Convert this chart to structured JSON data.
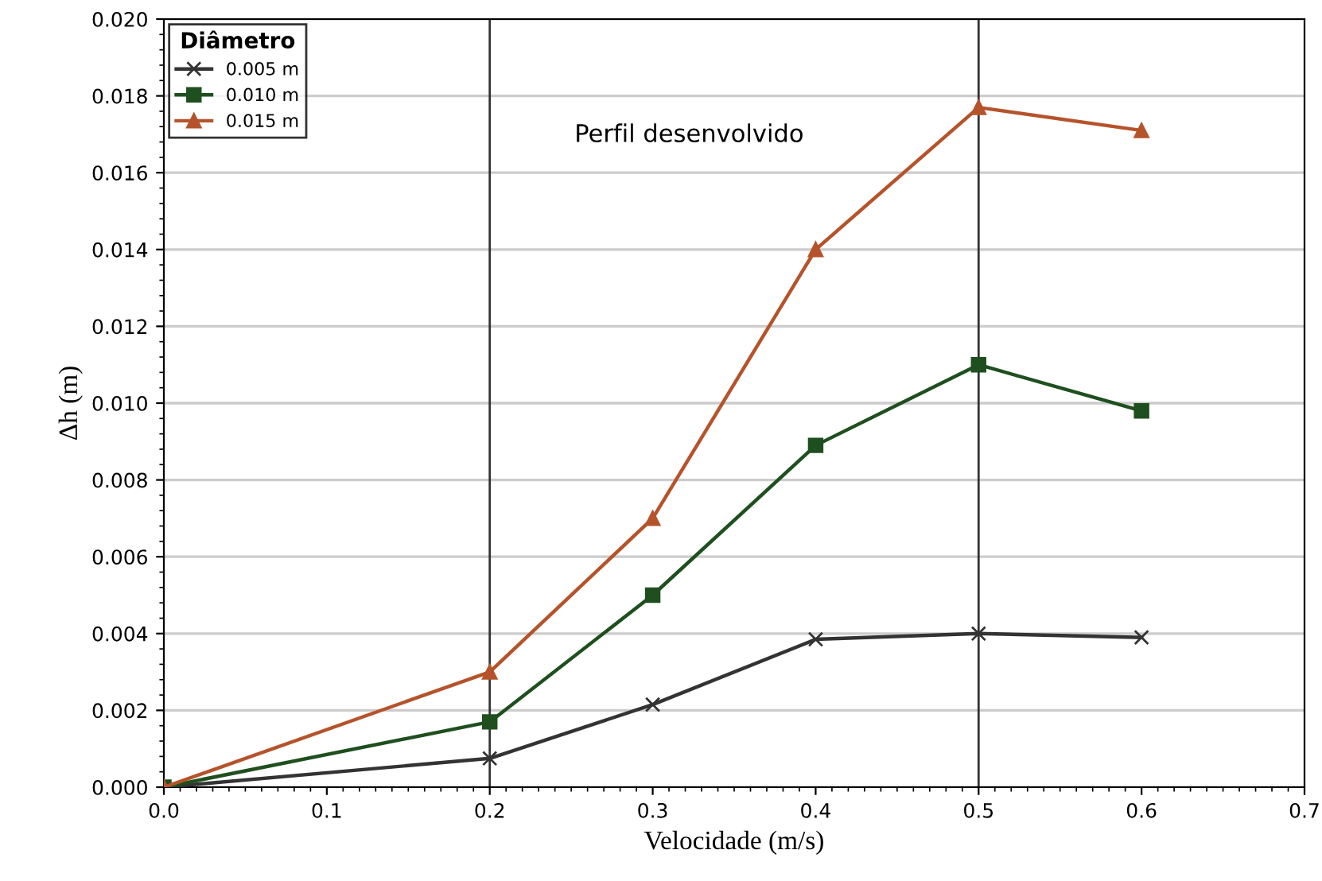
{
  "chart_data": {
    "type": "line",
    "xlabel": "Velocidade (m/s)",
    "ylabel": "Δh (m)",
    "legend_title": "Diâmetro",
    "x": [
      0.0,
      0.2,
      0.3,
      0.4,
      0.5,
      0.6
    ],
    "series": [
      {
        "name": "0.005 m",
        "color": "#333333",
        "marker": "cross",
        "values": [
          0.0,
          0.00075,
          0.00215,
          0.00385,
          0.004,
          0.0039
        ]
      },
      {
        "name": "0.010 m",
        "color": "#1f4f1f",
        "marker": "square",
        "values": [
          0.0,
          0.0017,
          0.005,
          0.0089,
          0.011,
          0.0098
        ]
      },
      {
        "name": "0.015 m",
        "color": "#b5532b",
        "marker": "triangle",
        "values": [
          0.0,
          0.003,
          0.007,
          0.014,
          0.0177,
          0.0171
        ]
      }
    ],
    "xlim": [
      0.0,
      0.7
    ],
    "xticks": [
      {
        "value": 0.0,
        "label": "0.0"
      },
      0.1,
      0.2,
      0.3,
      0.4,
      0.5,
      0.6,
      0.7
    ],
    "ylim": [
      0.0,
      0.02
    ],
    "yticks": [
      {
        "value": 0.0,
        "label": "0.000"
      },
      {
        "value": 0.002,
        "label": "0.002"
      },
      {
        "value": 0.004,
        "label": "0.004"
      },
      {
        "value": 0.006,
        "label": "0.006"
      },
      {
        "value": 0.008,
        "label": "0.008"
      },
      {
        "value": 0.01,
        "label": "0.010"
      },
      {
        "value": 0.012,
        "label": "0.012"
      },
      {
        "value": 0.014,
        "label": "0.014"
      },
      {
        "value": 0.016,
        "label": "0.016"
      },
      {
        "value": 0.018,
        "label": "0.018"
      },
      {
        "value": 0.02,
        "label": "0.020"
      }
    ],
    "ref_lines": [
      {
        "axis": "x",
        "value": 0.2,
        "color": "#333333"
      },
      {
        "axis": "x",
        "value": 0.5,
        "color": "#333333"
      }
    ],
    "annotations": [
      "Perfil desenvolvido"
    ],
    "grid": "y",
    "legend": "top left",
    "line_style": "solid"
  }
}
